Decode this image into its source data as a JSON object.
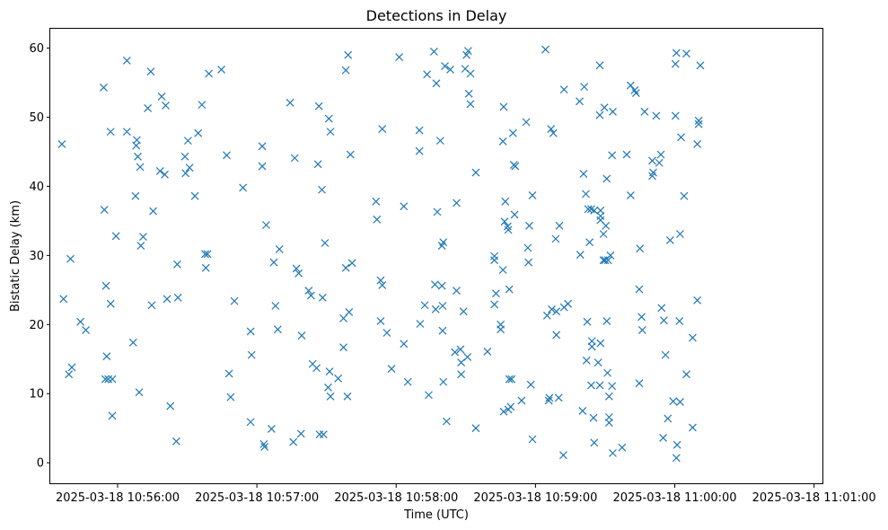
{
  "chart_data": {
    "type": "scatter",
    "title": "Detections in Delay",
    "xlabel": "Time (UTC)",
    "ylabel": "Bistatic Delay (km)",
    "marker": "x",
    "color": "#1f77b4",
    "grid": false,
    "x_unit": "seconds after 2025-03-18 10:56:00",
    "xlim": [
      -29,
      304
    ],
    "ylim": [
      -3.1,
      62.8
    ],
    "x_ticks": [
      {
        "value": 0,
        "label": "2025-03-18 10:56:00"
      },
      {
        "value": 60,
        "label": "2025-03-18 10:57:00"
      },
      {
        "value": 120,
        "label": "2025-03-18 10:58:00"
      },
      {
        "value": 180,
        "label": "2025-03-18 10:59:00"
      },
      {
        "value": 240,
        "label": "2025-03-18 11:00:00"
      },
      {
        "value": 300,
        "label": "2025-03-18 11:01:00"
      }
    ],
    "y_ticks": [
      0,
      10,
      20,
      30,
      40,
      50,
      60
    ],
    "points": [
      [
        -24.0,
        46.1
      ],
      [
        -23.3,
        23.7
      ],
      [
        -21.0,
        12.8
      ],
      [
        -20.3,
        29.5
      ],
      [
        -19.7,
        13.8
      ],
      [
        -16.0,
        20.4
      ],
      [
        -13.7,
        19.2
      ],
      [
        -6.0,
        54.3
      ],
      [
        -5.7,
        36.6
      ],
      [
        -5.3,
        12.1
      ],
      [
        -5.0,
        25.6
      ],
      [
        -4.7,
        15.4
      ],
      [
        -4.0,
        12.1
      ],
      [
        -3.0,
        47.9
      ],
      [
        -3.0,
        23.0
      ],
      [
        -2.3,
        12.1
      ],
      [
        -2.3,
        6.8
      ],
      [
        -0.7,
        32.8
      ],
      [
        4.0,
        58.2
      ],
      [
        4.0,
        47.9
      ],
      [
        6.7,
        17.4
      ],
      [
        7.7,
        38.6
      ],
      [
        8.3,
        46.7
      ],
      [
        8.0,
        45.9
      ],
      [
        8.7,
        44.3
      ],
      [
        9.3,
        10.2
      ],
      [
        9.7,
        42.8
      ],
      [
        10.0,
        31.4
      ],
      [
        11.0,
        32.7
      ],
      [
        13.0,
        51.3
      ],
      [
        14.3,
        56.6
      ],
      [
        14.7,
        22.8
      ],
      [
        15.3,
        36.4
      ],
      [
        18.3,
        42.2
      ],
      [
        19.0,
        53.0
      ],
      [
        20.3,
        41.7
      ],
      [
        20.7,
        51.7
      ],
      [
        21.3,
        23.7
      ],
      [
        22.7,
        8.2
      ],
      [
        25.3,
        3.1
      ],
      [
        25.7,
        28.7
      ],
      [
        26.0,
        23.9
      ],
      [
        29.0,
        44.3
      ],
      [
        29.3,
        41.9
      ],
      [
        30.3,
        46.6
      ],
      [
        31.0,
        42.7
      ],
      [
        33.3,
        38.6
      ],
      [
        34.7,
        47.7
      ],
      [
        36.3,
        51.8
      ],
      [
        37.7,
        30.2
      ],
      [
        38.0,
        28.2
      ],
      [
        38.7,
        30.2
      ],
      [
        39.3,
        56.3
      ],
      [
        44.7,
        56.9
      ],
      [
        47.0,
        44.5
      ],
      [
        48.0,
        12.9
      ],
      [
        48.7,
        9.5
      ],
      [
        50.3,
        23.4
      ],
      [
        54.0,
        39.8
      ],
      [
        57.3,
        5.9
      ],
      [
        57.3,
        19.0
      ],
      [
        57.7,
        15.6
      ],
      [
        62.3,
        45.8
      ],
      [
        62.3,
        42.9
      ],
      [
        63.0,
        2.7
      ],
      [
        63.3,
        2.3
      ],
      [
        64.0,
        34.4
      ],
      [
        66.3,
        4.9
      ],
      [
        67.3,
        29.0
      ],
      [
        68.0,
        22.7
      ],
      [
        69.0,
        19.3
      ],
      [
        69.7,
        30.9
      ],
      [
        74.3,
        52.1
      ],
      [
        75.7,
        3.0
      ],
      [
        76.3,
        44.1
      ],
      [
        77.0,
        28.1
      ],
      [
        78.0,
        27.4
      ],
      [
        79.3,
        18.4
      ],
      [
        79.0,
        4.2
      ],
      [
        82.3,
        24.9
      ],
      [
        83.3,
        24.2
      ],
      [
        84.0,
        14.3
      ],
      [
        85.7,
        13.7
      ],
      [
        86.3,
        43.2
      ],
      [
        86.7,
        51.6
      ],
      [
        87.0,
        4.1
      ],
      [
        88.0,
        39.5
      ],
      [
        88.3,
        23.9
      ],
      [
        88.7,
        4.1
      ],
      [
        89.3,
        31.8
      ],
      [
        91.0,
        49.8
      ],
      [
        90.7,
        10.9
      ],
      [
        91.3,
        13.2
      ],
      [
        91.7,
        9.6
      ],
      [
        91.7,
        47.9
      ],
      [
        95.0,
        12.2
      ],
      [
        97.3,
        16.7
      ],
      [
        97.3,
        20.9
      ],
      [
        98.3,
        28.2
      ],
      [
        98.3,
        56.8
      ],
      [
        99.3,
        59.0
      ],
      [
        99.0,
        9.6
      ],
      [
        99.7,
        21.8
      ],
      [
        100.3,
        44.6
      ],
      [
        101.0,
        28.9
      ],
      [
        111.3,
        37.8
      ],
      [
        111.7,
        35.2
      ],
      [
        113.3,
        20.5
      ],
      [
        113.3,
        26.4
      ],
      [
        114.0,
        48.3
      ],
      [
        114.0,
        25.7
      ],
      [
        116.0,
        18.8
      ],
      [
        118.0,
        13.6
      ],
      [
        121.3,
        58.7
      ],
      [
        123.3,
        17.2
      ],
      [
        123.3,
        37.1
      ],
      [
        125.0,
        11.7
      ],
      [
        130.0,
        48.1
      ],
      [
        130.0,
        45.1
      ],
      [
        130.3,
        20.1
      ],
      [
        132.3,
        22.8
      ],
      [
        133.3,
        56.2
      ],
      [
        134.0,
        9.8
      ],
      [
        136.3,
        59.5
      ],
      [
        136.7,
        25.8
      ],
      [
        137.0,
        22.2
      ],
      [
        137.3,
        54.9
      ],
      [
        137.7,
        36.3
      ],
      [
        139.0,
        46.6
      ],
      [
        139.7,
        25.6
      ],
      [
        139.7,
        31.4
      ],
      [
        140.0,
        22.7
      ],
      [
        140.0,
        19.1
      ],
      [
        140.3,
        11.7
      ],
      [
        140.3,
        31.9
      ],
      [
        141.0,
        57.4
      ],
      [
        141.7,
        6.0
      ],
      [
        143.3,
        56.9
      ],
      [
        145.3,
        16.0
      ],
      [
        146.0,
        37.6
      ],
      [
        146.0,
        24.9
      ],
      [
        147.7,
        16.4
      ],
      [
        148.0,
        14.5
      ],
      [
        148.0,
        12.8
      ],
      [
        149.0,
        21.9
      ],
      [
        149.7,
        57.0
      ],
      [
        150.3,
        59.0
      ],
      [
        150.7,
        15.3
      ],
      [
        151.0,
        59.6
      ],
      [
        151.3,
        53.4
      ],
      [
        152.0,
        51.9
      ],
      [
        152.0,
        56.3
      ],
      [
        154.3,
        42.0
      ],
      [
        154.3,
        5.0
      ],
      [
        159.3,
        16.1
      ],
      [
        162.3,
        29.9
      ],
      [
        162.3,
        29.3
      ],
      [
        162.3,
        22.9
      ],
      [
        163.0,
        24.5
      ],
      [
        165.0,
        20.0
      ],
      [
        165.0,
        19.3
      ],
      [
        166.0,
        27.9
      ],
      [
        166.0,
        46.5
      ],
      [
        166.3,
        51.5
      ],
      [
        166.3,
        7.4
      ],
      [
        166.7,
        34.9
      ],
      [
        167.0,
        37.8
      ],
      [
        168.0,
        34.2
      ],
      [
        168.3,
        33.7
      ],
      [
        168.3,
        7.7
      ],
      [
        168.7,
        25.1
      ],
      [
        168.7,
        12.1
      ],
      [
        169.3,
        8.1
      ],
      [
        169.7,
        12.1
      ],
      [
        170.3,
        47.7
      ],
      [
        170.7,
        43.1
      ],
      [
        171.0,
        35.9
      ],
      [
        171.3,
        42.9
      ],
      [
        174.0,
        9.0
      ],
      [
        176.0,
        49.3
      ],
      [
        176.7,
        31.1
      ],
      [
        177.0,
        29.0
      ],
      [
        177.3,
        34.3
      ],
      [
        178.0,
        11.3
      ],
      [
        178.7,
        38.7
      ],
      [
        178.7,
        3.4
      ],
      [
        184.3,
        59.8
      ],
      [
        185.0,
        21.3
      ],
      [
        185.7,
        9.0
      ],
      [
        186.0,
        9.4
      ],
      [
        186.7,
        48.3
      ],
      [
        187.0,
        22.2
      ],
      [
        187.7,
        47.7
      ],
      [
        188.7,
        32.4
      ],
      [
        189.0,
        18.5
      ],
      [
        189.0,
        21.9
      ],
      [
        190.0,
        9.4
      ],
      [
        190.3,
        34.3
      ],
      [
        192.0,
        1.1
      ],
      [
        192.3,
        22.5
      ],
      [
        192.3,
        54.0
      ],
      [
        194.0,
        23.0
      ],
      [
        199.0,
        52.3
      ],
      [
        199.3,
        30.1
      ],
      [
        200.3,
        7.5
      ],
      [
        200.7,
        41.8
      ],
      [
        201.0,
        54.4
      ],
      [
        201.7,
        38.9
      ],
      [
        202.0,
        14.8
      ],
      [
        202.3,
        20.4
      ],
      [
        202.7,
        36.7
      ],
      [
        203.3,
        31.9
      ],
      [
        204.0,
        11.2
      ],
      [
        204.0,
        36.7
      ],
      [
        204.3,
        17.6
      ],
      [
        204.3,
        16.8
      ],
      [
        205.0,
        6.5
      ],
      [
        205.3,
        2.9
      ],
      [
        205.3,
        36.5
      ],
      [
        207.0,
        14.5
      ],
      [
        207.7,
        57.5
      ],
      [
        207.7,
        50.3
      ],
      [
        207.7,
        11.2
      ],
      [
        208.0,
        17.3
      ],
      [
        208.0,
        35.7
      ],
      [
        208.0,
        36.5
      ],
      [
        208.0,
        35.1
      ],
      [
        209.3,
        33.1
      ],
      [
        209.3,
        29.3
      ],
      [
        209.7,
        51.4
      ],
      [
        210.0,
        29.3
      ],
      [
        210.3,
        34.3
      ],
      [
        210.7,
        41.1
      ],
      [
        210.7,
        20.5
      ],
      [
        211.0,
        13.0
      ],
      [
        211.3,
        29.3
      ],
      [
        211.7,
        6.6
      ],
      [
        211.7,
        5.8
      ],
      [
        211.7,
        9.6
      ],
      [
        212.3,
        30.0
      ],
      [
        213.0,
        44.5
      ],
      [
        213.0,
        11.1
      ],
      [
        213.3,
        50.8
      ],
      [
        213.3,
        1.4
      ],
      [
        217.3,
        2.2
      ],
      [
        219.3,
        44.6
      ],
      [
        221.0,
        54.6
      ],
      [
        221.0,
        38.7
      ],
      [
        222.7,
        53.9
      ],
      [
        223.3,
        53.5
      ],
      [
        224.7,
        25.1
      ],
      [
        224.7,
        11.5
      ],
      [
        225.0,
        31.0
      ],
      [
        225.7,
        21.1
      ],
      [
        226.0,
        19.2
      ],
      [
        227.0,
        50.8
      ],
      [
        230.3,
        43.7
      ],
      [
        230.3,
        41.5
      ],
      [
        230.7,
        42.0
      ],
      [
        232.0,
        50.2
      ],
      [
        233.3,
        43.4
      ],
      [
        234.0,
        44.6
      ],
      [
        234.3,
        22.4
      ],
      [
        235.0,
        3.6
      ],
      [
        235.3,
        20.6
      ],
      [
        236.0,
        15.6
      ],
      [
        237.0,
        6.4
      ],
      [
        238.0,
        32.2
      ],
      [
        239.3,
        8.9
      ],
      [
        240.3,
        57.7
      ],
      [
        240.3,
        50.2
      ],
      [
        240.7,
        59.3
      ],
      [
        240.7,
        0.7
      ],
      [
        241.0,
        2.6
      ],
      [
        242.0,
        20.5
      ],
      [
        242.3,
        8.8
      ],
      [
        242.3,
        33.1
      ],
      [
        242.7,
        47.1
      ],
      [
        244.0,
        38.6
      ],
      [
        245.0,
        59.2
      ],
      [
        245.0,
        12.8
      ],
      [
        247.7,
        18.1
      ],
      [
        247.7,
        5.1
      ],
      [
        249.7,
        46.1
      ],
      [
        249.7,
        23.5
      ],
      [
        250.3,
        49.5
      ],
      [
        250.3,
        49.0
      ],
      [
        251.0,
        57.5
      ]
    ]
  }
}
